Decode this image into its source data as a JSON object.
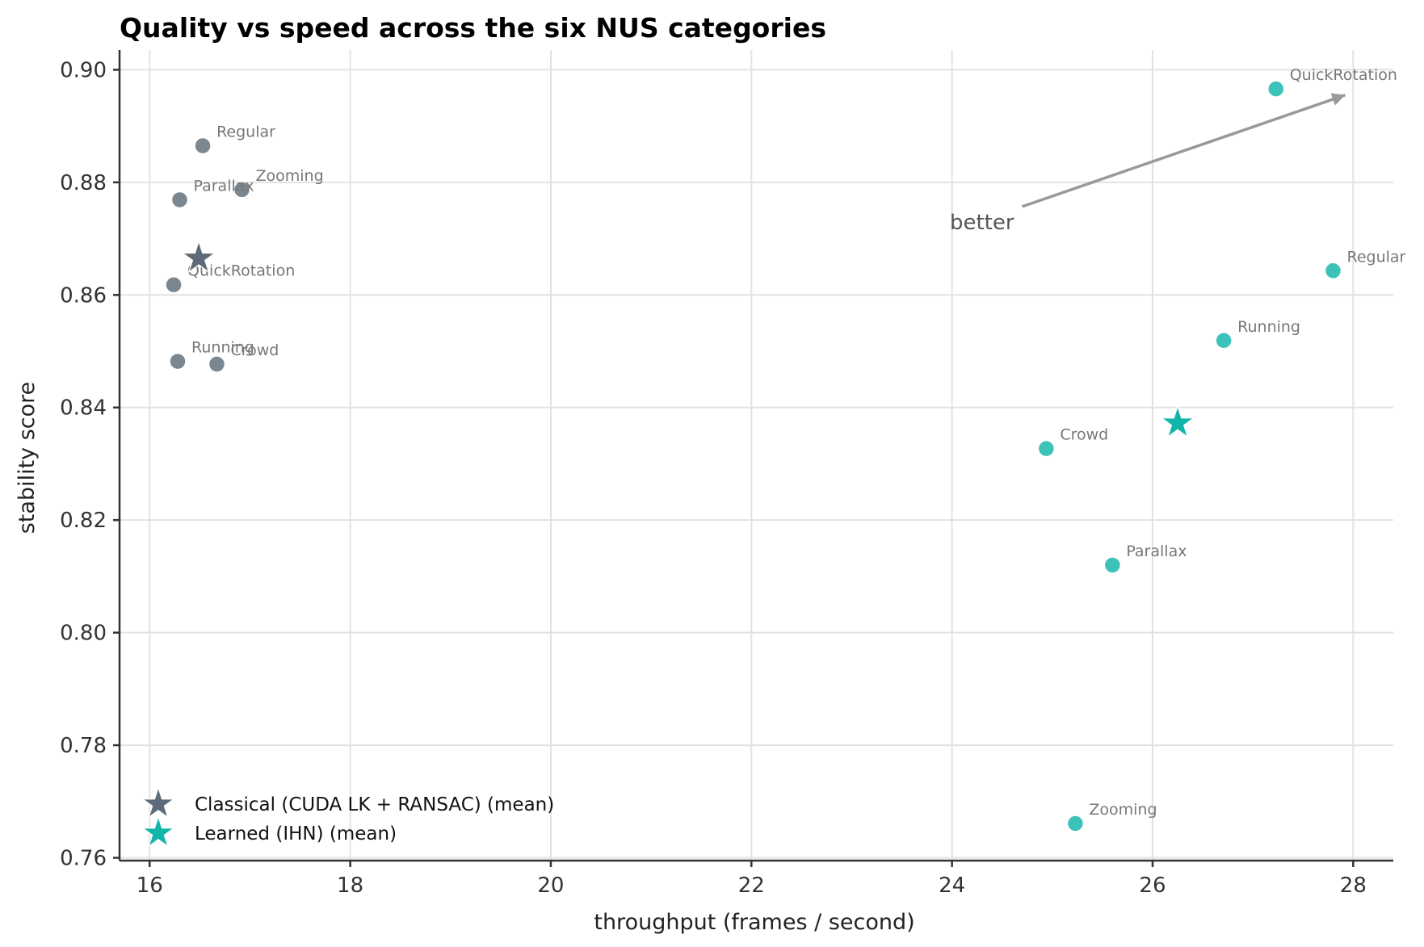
{
  "chart_data": {
    "type": "scatter",
    "title": "Quality vs speed across the six NUS categories",
    "xlabel": "throughput  (frames / second)",
    "ylabel": "stability score",
    "xlim": [
      15.7,
      28.4
    ],
    "ylim": [
      0.7595,
      0.9035
    ],
    "xticks": [
      16,
      18,
      20,
      22,
      24,
      26,
      28
    ],
    "xtick_labels": [
      "16",
      "18",
      "20",
      "22",
      "24",
      "26",
      "28"
    ],
    "yticks": [
      0.76,
      0.78,
      0.8,
      0.82,
      0.84,
      0.86,
      0.88,
      0.9
    ],
    "ytick_labels": [
      "0.76",
      "0.78",
      "0.80",
      "0.82",
      "0.84",
      "0.86",
      "0.88",
      "0.90"
    ],
    "grid": true,
    "legend_position": "bottom-left",
    "series": [
      {
        "name": "Classical  (CUDA LK + RANSAC)",
        "color": "#5d6b78",
        "points": [
          {
            "label": "Regular",
            "x": 16.53,
            "y": 0.8865
          },
          {
            "label": "Zooming",
            "x": 16.92,
            "y": 0.8787
          },
          {
            "label": "Parallax",
            "x": 16.3,
            "y": 0.8769
          },
          {
            "label": "QuickRotation",
            "x": 16.24,
            "y": 0.8618
          },
          {
            "label": "Running",
            "x": 16.28,
            "y": 0.8482
          },
          {
            "label": "Crowd",
            "x": 16.67,
            "y": 0.8477
          }
        ],
        "mean": {
          "x": 16.49,
          "y": 0.8665
        },
        "mean_legend": "Classical  (CUDA LK + RANSAC)  (mean)"
      },
      {
        "name": "Learned  (IHN)",
        "color": "#12b5aa",
        "points": [
          {
            "label": "QuickRotation",
            "x": 27.23,
            "y": 0.8966
          },
          {
            "label": "Regular",
            "x": 27.8,
            "y": 0.8643
          },
          {
            "label": "Running",
            "x": 26.71,
            "y": 0.8519
          },
          {
            "label": "Crowd",
            "x": 24.94,
            "y": 0.8327
          },
          {
            "label": "Parallax",
            "x": 25.6,
            "y": 0.812
          },
          {
            "label": "Zooming",
            "x": 25.23,
            "y": 0.7661
          }
        ],
        "mean": {
          "x": 26.25,
          "y": 0.8372
        },
        "mean_legend": "Learned  (IHN)  (mean)"
      }
    ],
    "annotation": {
      "text": "better",
      "arrow_from": {
        "x": 24.7,
        "y": 0.8757
      },
      "arrow_to": {
        "x": 27.92,
        "y": 0.8955
      }
    }
  }
}
